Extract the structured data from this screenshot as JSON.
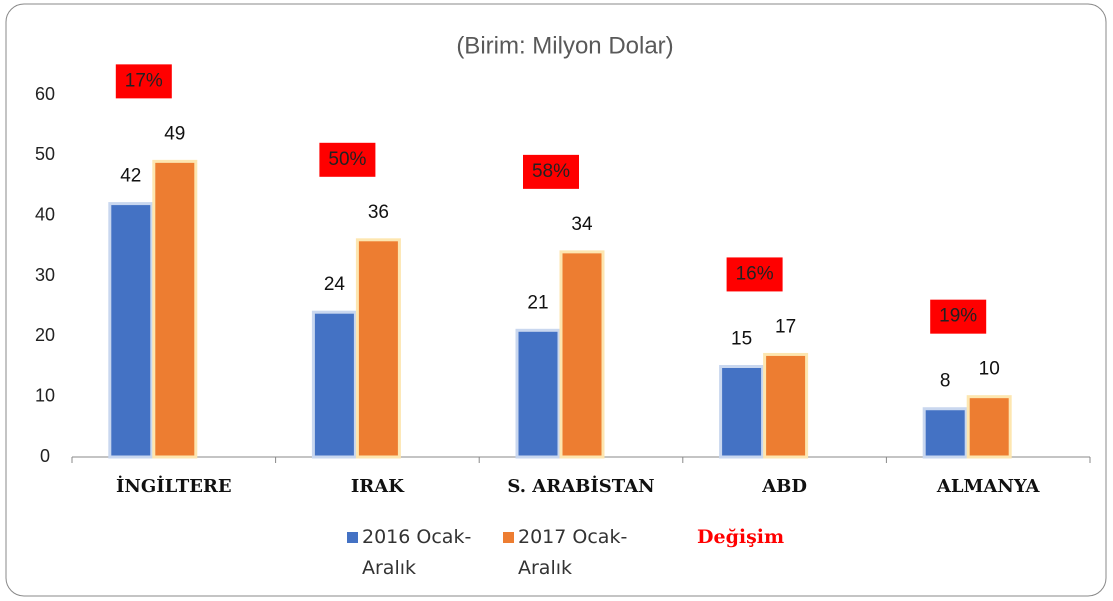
{
  "chart_data": {
    "type": "bar",
    "title": "(Birim: Milyon Dolar)",
    "categories": [
      "İNGİLTERE",
      "IRAK",
      "S. ARABİSTAN",
      "ABD",
      "ALMANYA"
    ],
    "series": [
      {
        "name": "2016 Ocak-Aralık",
        "color": "#4472c4",
        "values": [
          42,
          24,
          21,
          15,
          8
        ]
      },
      {
        "name": "2017 Ocak-Aralık",
        "color": "#ed7d31",
        "values": [
          49,
          36,
          34,
          17,
          10
        ]
      }
    ],
    "change": {
      "name": "Değişim",
      "color": "#ff0000",
      "values": [
        17,
        50,
        58,
        16,
        19
      ],
      "value_labels": [
        "17%",
        "50%",
        "58%",
        "16%",
        "19%"
      ]
    },
    "ylim": [
      0,
      60
    ],
    "yticks": [
      0,
      10,
      20,
      30,
      40,
      50,
      60
    ],
    "grid": false
  }
}
